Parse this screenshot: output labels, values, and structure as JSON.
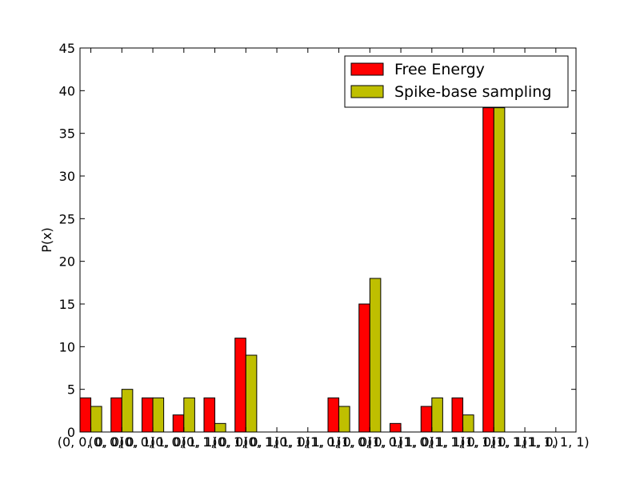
{
  "chart_data": {
    "type": "bar",
    "title": "",
    "xlabel": "",
    "ylabel": "P(x)",
    "ylim": [
      0,
      45
    ],
    "yticks": [
      0,
      5,
      10,
      15,
      20,
      25,
      30,
      35,
      40,
      45
    ],
    "grid": false,
    "legend_position": "top-right",
    "categories": [
      "(0, 0, 0, 0)",
      "(0, 0, 0, 1)",
      "(0, 0, 1, 0)",
      "(0, 0, 1, 1)",
      "(0, 1, 0, 0)",
      "(0, 1, 0, 1)",
      "(0, 1, 1, 0)",
      "(0, 1, 1, 1)",
      "(1, 0, 0, 0)",
      "(1, 0, 0, 1)",
      "(1, 0, 1, 0)",
      "(1, 0, 1, 1)",
      "(1, 1, 0, 0)",
      "(1, 1, 0, 1)",
      "(1, 1, 1, 0)",
      "(1, 1, 1, 1)"
    ],
    "series": [
      {
        "name": "Free Energy",
        "color": "#ff0000",
        "values": [
          4,
          4,
          4,
          2,
          4,
          11,
          0,
          0,
          4,
          15,
          1,
          3,
          4,
          38,
          0,
          0
        ]
      },
      {
        "name": "Spike-base sampling",
        "color": "#bfbf00",
        "values": [
          3,
          5,
          4,
          4,
          1,
          9,
          0,
          0,
          3,
          18,
          0,
          4,
          2,
          38,
          0,
          0
        ]
      }
    ]
  }
}
